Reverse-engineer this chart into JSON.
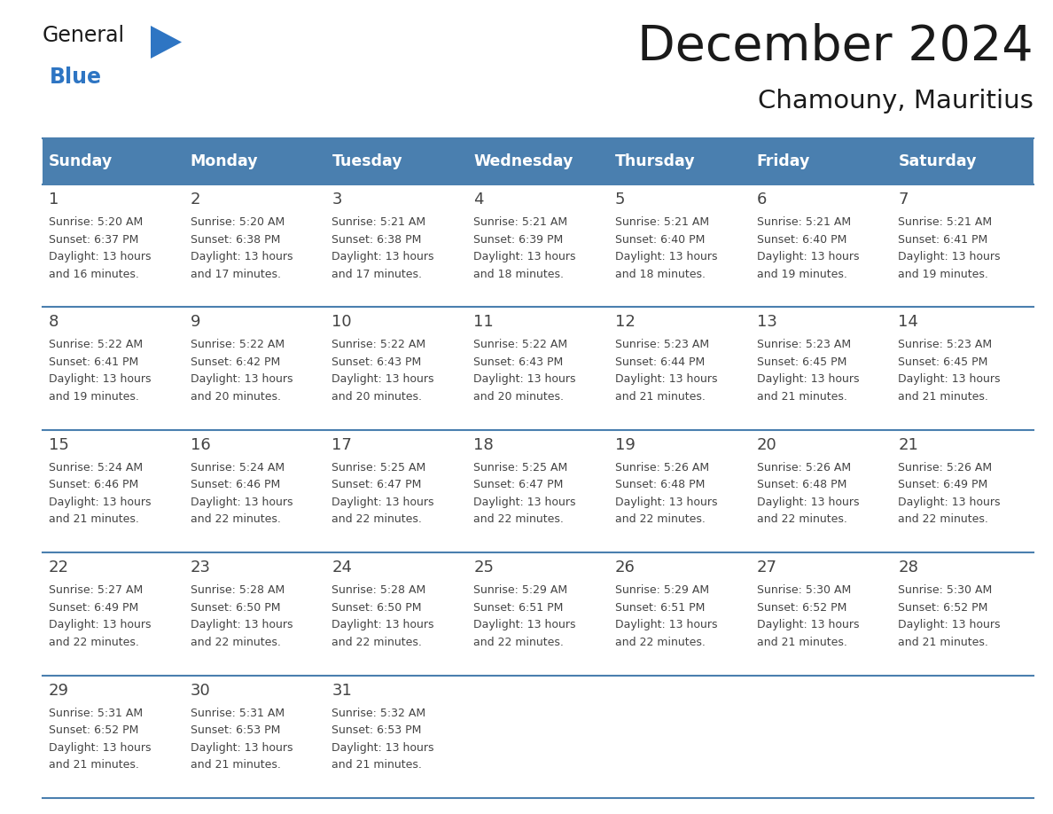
{
  "title": "December 2024",
  "subtitle": "Chamouny, Mauritius",
  "days_of_week": [
    "Sunday",
    "Monday",
    "Tuesday",
    "Wednesday",
    "Thursday",
    "Friday",
    "Saturday"
  ],
  "header_bg": "#4A7FAF",
  "header_text": "#FFFFFF",
  "cell_bg_light": "#FFFFFF",
  "divider_color": "#4A7FAF",
  "text_color": "#444444",
  "day_num_color": "#444444",
  "calendar_data": [
    [
      {
        "day": 1,
        "sunrise": "5:20 AM",
        "sunset": "6:37 PM",
        "daylight_hours": 13,
        "daylight_mins": 16
      },
      {
        "day": 2,
        "sunrise": "5:20 AM",
        "sunset": "6:38 PM",
        "daylight_hours": 13,
        "daylight_mins": 17
      },
      {
        "day": 3,
        "sunrise": "5:21 AM",
        "sunset": "6:38 PM",
        "daylight_hours": 13,
        "daylight_mins": 17
      },
      {
        "day": 4,
        "sunrise": "5:21 AM",
        "sunset": "6:39 PM",
        "daylight_hours": 13,
        "daylight_mins": 18
      },
      {
        "day": 5,
        "sunrise": "5:21 AM",
        "sunset": "6:40 PM",
        "daylight_hours": 13,
        "daylight_mins": 18
      },
      {
        "day": 6,
        "sunrise": "5:21 AM",
        "sunset": "6:40 PM",
        "daylight_hours": 13,
        "daylight_mins": 19
      },
      {
        "day": 7,
        "sunrise": "5:21 AM",
        "sunset": "6:41 PM",
        "daylight_hours": 13,
        "daylight_mins": 19
      }
    ],
    [
      {
        "day": 8,
        "sunrise": "5:22 AM",
        "sunset": "6:41 PM",
        "daylight_hours": 13,
        "daylight_mins": 19
      },
      {
        "day": 9,
        "sunrise": "5:22 AM",
        "sunset": "6:42 PM",
        "daylight_hours": 13,
        "daylight_mins": 20
      },
      {
        "day": 10,
        "sunrise": "5:22 AM",
        "sunset": "6:43 PM",
        "daylight_hours": 13,
        "daylight_mins": 20
      },
      {
        "day": 11,
        "sunrise": "5:22 AM",
        "sunset": "6:43 PM",
        "daylight_hours": 13,
        "daylight_mins": 20
      },
      {
        "day": 12,
        "sunrise": "5:23 AM",
        "sunset": "6:44 PM",
        "daylight_hours": 13,
        "daylight_mins": 21
      },
      {
        "day": 13,
        "sunrise": "5:23 AM",
        "sunset": "6:45 PM",
        "daylight_hours": 13,
        "daylight_mins": 21
      },
      {
        "day": 14,
        "sunrise": "5:23 AM",
        "sunset": "6:45 PM",
        "daylight_hours": 13,
        "daylight_mins": 21
      }
    ],
    [
      {
        "day": 15,
        "sunrise": "5:24 AM",
        "sunset": "6:46 PM",
        "daylight_hours": 13,
        "daylight_mins": 21
      },
      {
        "day": 16,
        "sunrise": "5:24 AM",
        "sunset": "6:46 PM",
        "daylight_hours": 13,
        "daylight_mins": 22
      },
      {
        "day": 17,
        "sunrise": "5:25 AM",
        "sunset": "6:47 PM",
        "daylight_hours": 13,
        "daylight_mins": 22
      },
      {
        "day": 18,
        "sunrise": "5:25 AM",
        "sunset": "6:47 PM",
        "daylight_hours": 13,
        "daylight_mins": 22
      },
      {
        "day": 19,
        "sunrise": "5:26 AM",
        "sunset": "6:48 PM",
        "daylight_hours": 13,
        "daylight_mins": 22
      },
      {
        "day": 20,
        "sunrise": "5:26 AM",
        "sunset": "6:48 PM",
        "daylight_hours": 13,
        "daylight_mins": 22
      },
      {
        "day": 21,
        "sunrise": "5:26 AM",
        "sunset": "6:49 PM",
        "daylight_hours": 13,
        "daylight_mins": 22
      }
    ],
    [
      {
        "day": 22,
        "sunrise": "5:27 AM",
        "sunset": "6:49 PM",
        "daylight_hours": 13,
        "daylight_mins": 22
      },
      {
        "day": 23,
        "sunrise": "5:28 AM",
        "sunset": "6:50 PM",
        "daylight_hours": 13,
        "daylight_mins": 22
      },
      {
        "day": 24,
        "sunrise": "5:28 AM",
        "sunset": "6:50 PM",
        "daylight_hours": 13,
        "daylight_mins": 22
      },
      {
        "day": 25,
        "sunrise": "5:29 AM",
        "sunset": "6:51 PM",
        "daylight_hours": 13,
        "daylight_mins": 22
      },
      {
        "day": 26,
        "sunrise": "5:29 AM",
        "sunset": "6:51 PM",
        "daylight_hours": 13,
        "daylight_mins": 22
      },
      {
        "day": 27,
        "sunrise": "5:30 AM",
        "sunset": "6:52 PM",
        "daylight_hours": 13,
        "daylight_mins": 21
      },
      {
        "day": 28,
        "sunrise": "5:30 AM",
        "sunset": "6:52 PM",
        "daylight_hours": 13,
        "daylight_mins": 21
      }
    ],
    [
      {
        "day": 29,
        "sunrise": "5:31 AM",
        "sunset": "6:52 PM",
        "daylight_hours": 13,
        "daylight_mins": 21
      },
      {
        "day": 30,
        "sunrise": "5:31 AM",
        "sunset": "6:53 PM",
        "daylight_hours": 13,
        "daylight_mins": 21
      },
      {
        "day": 31,
        "sunrise": "5:32 AM",
        "sunset": "6:53 PM",
        "daylight_hours": 13,
        "daylight_mins": 21
      },
      null,
      null,
      null,
      null
    ]
  ],
  "logo_general_color": "#1A1A1A",
  "logo_blue_color": "#2E75C3",
  "logo_triangle_color": "#2E75C3",
  "fig_width": 11.88,
  "fig_height": 9.18,
  "dpi": 100
}
